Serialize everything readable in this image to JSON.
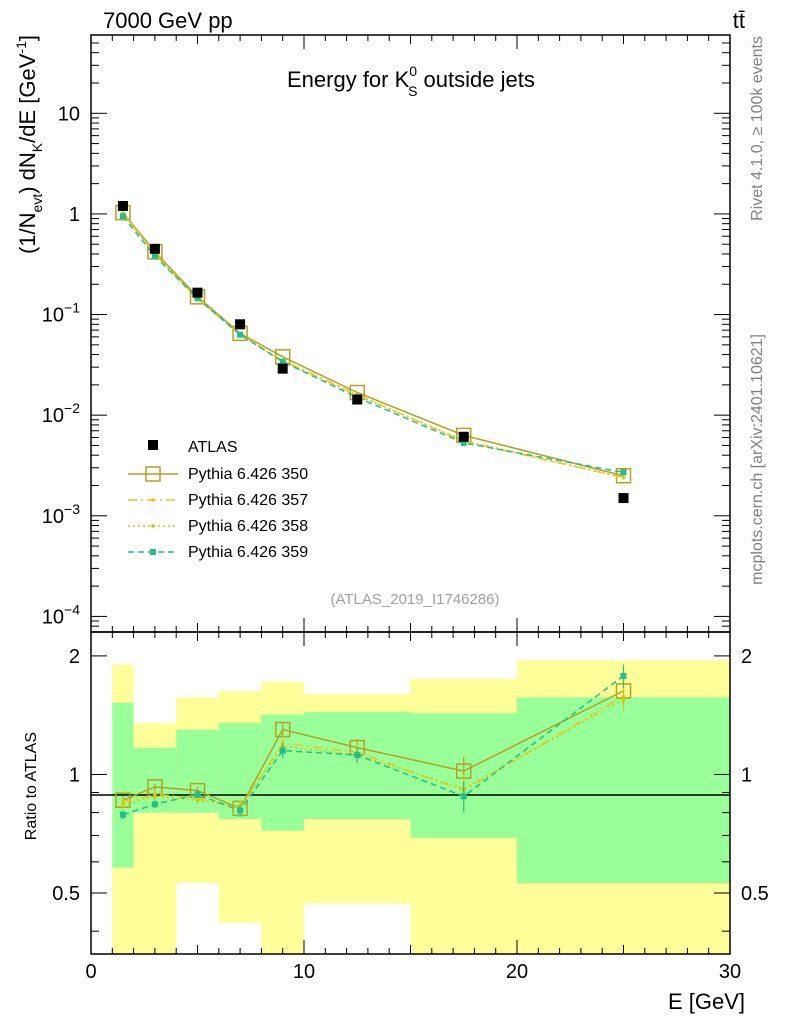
{
  "header": {
    "process": "7000 GeV pp",
    "channel": "tt̄",
    "plot_title": "Energy for K",
    "plot_title_sup": "0",
    "plot_title_sub": "S",
    "plot_title_tail": " outside jets",
    "side_label_top": "Rivet 4.1.0, ≥ 100k events",
    "side_label_bottom": "mcplots.cern.ch [arXiv:2401.10621]",
    "analysis_ref": "(ATLAS_2019_I1746286)"
  },
  "axes": {
    "main_ylabel": "(1/N_evt) dN_K/dE [GeV⁻¹]",
    "ratio_ylabel": "Ratio to ATLAS",
    "xlabel": "E [GeV]",
    "x_ticks": [
      "0",
      "10",
      "20",
      "30"
    ],
    "main_ytick_values": [
      0.0001,
      0.001,
      0.01,
      0.1,
      1,
      10
    ],
    "main_ytick_labels": [
      {
        "base": "10",
        "exp": "−4"
      },
      {
        "base": "10",
        "exp": "−3"
      },
      {
        "base": "10",
        "exp": "−2"
      },
      {
        "base": "10",
        "exp": "−1"
      },
      {
        "base": "1",
        "exp": ""
      },
      {
        "base": "10",
        "exp": ""
      }
    ],
    "ratio_ytick_values": [
      0.5,
      1,
      2
    ],
    "ratio_ytick_labels": [
      "0.5",
      "1",
      "2"
    ]
  },
  "legend": {
    "entries": [
      {
        "key": "atlas",
        "label": "ATLAS"
      },
      {
        "key": "p350",
        "label": "Pythia 6.426 350"
      },
      {
        "key": "p357",
        "label": "Pythia 6.426 357"
      },
      {
        "key": "p358",
        "label": "Pythia 6.426 358"
      },
      {
        "key": "p359",
        "label": "Pythia 6.426 359"
      }
    ]
  },
  "chart_data": {
    "type": "scatter",
    "title": "Energy for K0S outside jets",
    "xlabel": "E [GeV]",
    "ylabel": "(1/Nevt) dNK/dE [GeV^-1]",
    "xlim": [
      0,
      30
    ],
    "ylim": [
      7e-05,
      60
    ],
    "ratio_ylim": [
      0.35,
      2.3
    ],
    "yscale": "log",
    "bins": [
      [
        1,
        2
      ],
      [
        2,
        4
      ],
      [
        4,
        6
      ],
      [
        6,
        8
      ],
      [
        8,
        10
      ],
      [
        10,
        15
      ],
      [
        15,
        20
      ],
      [
        20,
        30
      ]
    ],
    "x": [
      1.5,
      3,
      5,
      7,
      9,
      12.5,
      17.5,
      25
    ],
    "data": {
      "name": "ATLAS",
      "values": [
        1.2,
        0.45,
        0.165,
        0.08,
        0.029,
        0.0143,
        0.0061,
        0.0015
      ],
      "ratio_band_inner": [
        [
          0.58,
          1.52
        ],
        [
          0.8,
          1.17
        ],
        [
          0.8,
          1.3
        ],
        [
          0.77,
          1.35
        ],
        [
          0.72,
          1.42
        ],
        [
          0.77,
          1.44
        ],
        [
          0.69,
          1.43
        ],
        [
          0.53,
          1.57
        ]
      ],
      "ratio_band_outer": [
        [
          0.3,
          1.9
        ],
        [
          0.35,
          1.35
        ],
        [
          0.53,
          1.57
        ],
        [
          0.42,
          1.63
        ],
        [
          0.3,
          1.72
        ],
        [
          0.47,
          1.6
        ],
        [
          0.3,
          1.75
        ],
        [
          0.3,
          1.95
        ]
      ]
    },
    "series": [
      {
        "key": "p350",
        "name": "Pythia 6.426 350",
        "color": "#b5a020",
        "dash": "",
        "marker": "open-square",
        "values": [
          1.03,
          0.42,
          0.15,
          0.065,
          0.038,
          0.0168,
          0.0063,
          0.0025
        ],
        "ratio": [
          0.86,
          0.93,
          0.91,
          0.82,
          1.3,
          1.17,
          1.02,
          1.63
        ],
        "ratio_err": [
          0.02,
          0.02,
          0.02,
          0.03,
          0.06,
          0.06,
          0.09,
          0.12
        ]
      },
      {
        "key": "p357",
        "name": "Pythia 6.426 357",
        "color": "#f5c020",
        "dash": "9,4,2,4",
        "marker": "dot",
        "values": [
          1.02,
          0.4,
          0.145,
          0.063,
          0.035,
          0.016,
          0.0055,
          0.0024
        ],
        "ratio": [
          0.85,
          0.89,
          0.87,
          0.82,
          1.2,
          1.14,
          0.91,
          1.58
        ],
        "ratio_err": [
          0.02,
          0.02,
          0.02,
          0.03,
          0.05,
          0.05,
          0.08,
          0.1
        ]
      },
      {
        "key": "p358",
        "name": "Pythia 6.426 358",
        "color": "#cccc00",
        "dash": "2,3",
        "marker": "dot",
        "values": [
          1.01,
          0.4,
          0.142,
          0.064,
          0.034,
          0.0158,
          0.0056,
          0.0024
        ],
        "ratio": [
          0.84,
          0.88,
          0.86,
          0.83,
          1.18,
          1.12,
          0.92,
          1.55
        ],
        "ratio_err": [
          0.02,
          0.02,
          0.02,
          0.03,
          0.05,
          0.05,
          0.08,
          0.1
        ]
      },
      {
        "key": "p359",
        "name": "Pythia 6.426 359",
        "color": "#22c088",
        "dash": "6,4",
        "marker": "filled-square",
        "values": [
          0.95,
          0.38,
          0.145,
          0.063,
          0.034,
          0.015,
          0.0053,
          0.0027
        ],
        "ratio": [
          0.79,
          0.84,
          0.89,
          0.81,
          1.15,
          1.12,
          0.88,
          1.78
        ],
        "ratio_err": [
          0.02,
          0.02,
          0.02,
          0.03,
          0.05,
          0.05,
          0.08,
          0.12
        ]
      }
    ]
  }
}
